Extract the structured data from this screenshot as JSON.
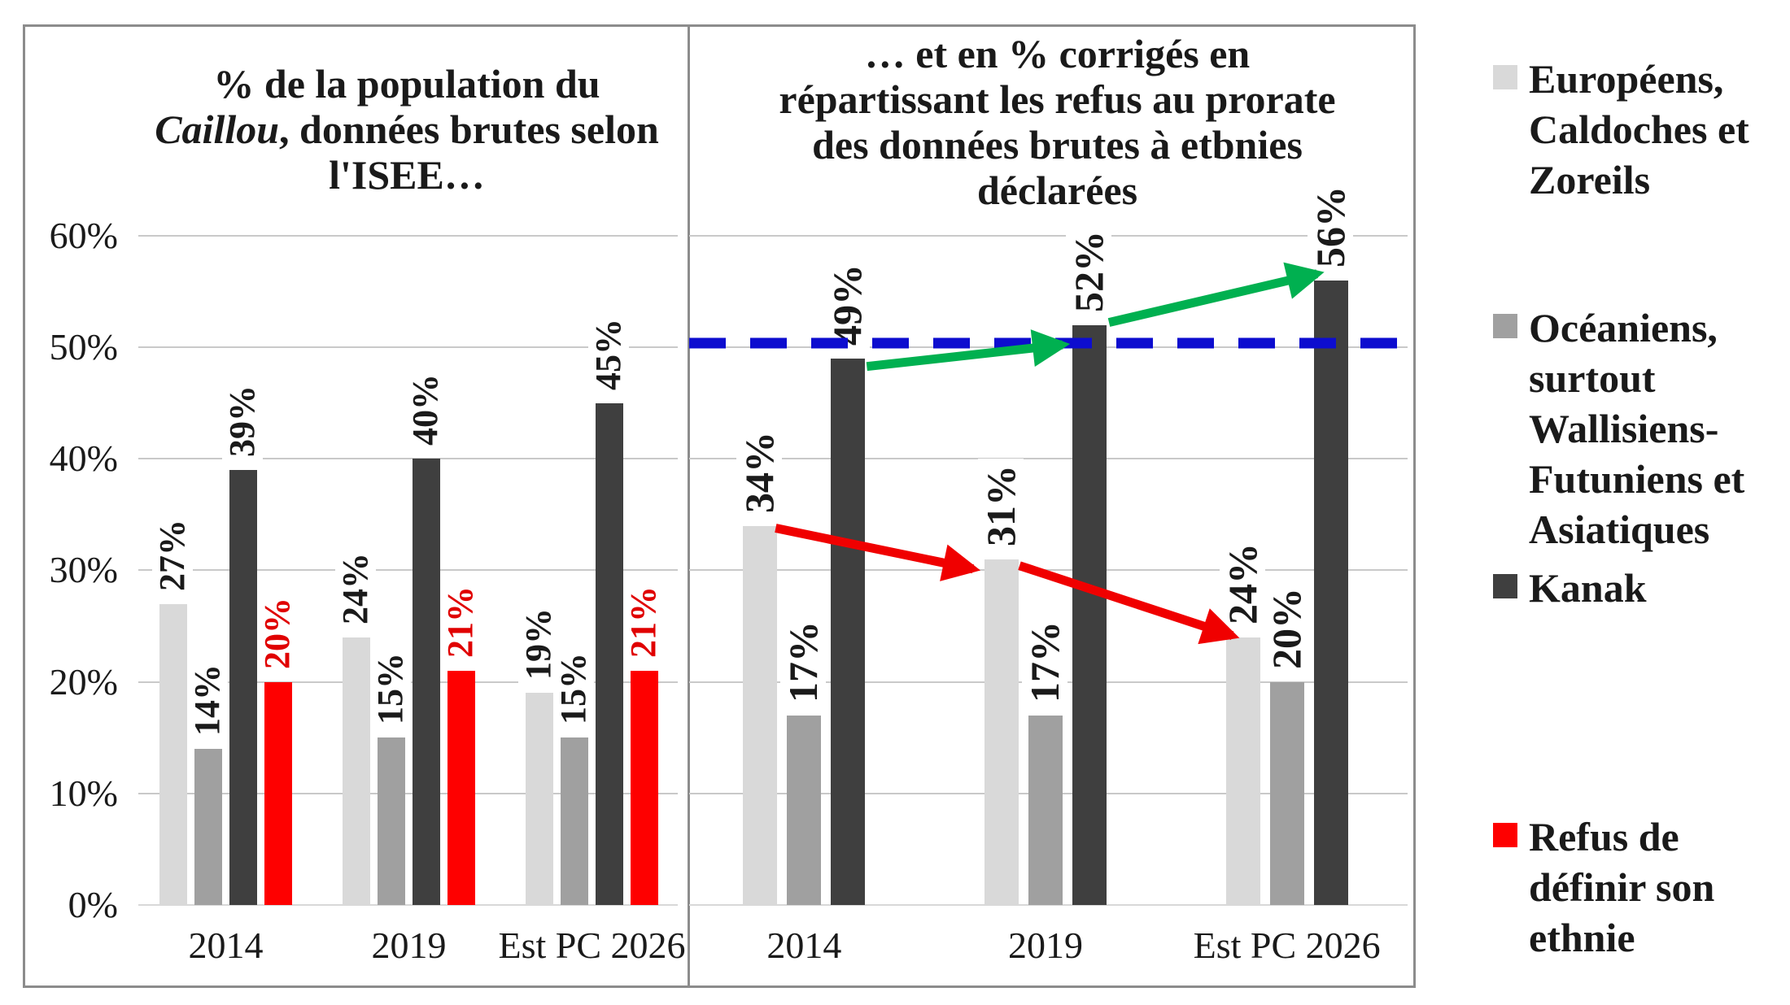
{
  "titles": {
    "left_line1": "% de la population du",
    "left_line2_italic": "Caillou",
    "left_line2_rest": ", données brutes selon",
    "left_line3": "l'ISEE…",
    "right": "… et en % corrigés en\nrépartissant les refus au prorate\ndes données brutes à etbnies\ndéclarées"
  },
  "colors": {
    "light_gray": "#d9d9d9",
    "mid_gray": "#a0a0a0",
    "dark_gray": "#3f3f3f",
    "red": "#fe0000",
    "red_label": "#e00000",
    "grid": "#c9c9c9",
    "border": "#8c8c8c",
    "ref_line_blue": "#0d0dcf",
    "trend_green": "#00b050",
    "trend_red": "#f00000"
  },
  "legend": {
    "items": [
      {
        "label": "Européens,\nCaldoches et\nZoreils",
        "color": "#d9d9d9"
      },
      {
        "label": "Océaniens,\nsurtout\nWallisiens-\nFutuniens et\nAsiatiques",
        "color": "#a0a0a0"
      },
      {
        "label": "Kanak",
        "color": "#3f3f3f"
      },
      {
        "label": "Refus de\ndéfinir son\nethnie",
        "color": "#fe0000"
      }
    ]
  },
  "chart_data": [
    {
      "panel": "left",
      "type": "bar",
      "title": "% de la population du Caillou, données brutes selon l'ISEE…",
      "categories": [
        "2014",
        "2019",
        "Est PC 2026"
      ],
      "series": [
        {
          "name": "Européens, Caldoches et Zoreils",
          "color": "#d9d9d9",
          "label_color": "#1a1a1a",
          "values": [
            27,
            24,
            19
          ]
        },
        {
          "name": "Océaniens, surtout Wallisiens-Futuniens et Asiatiques",
          "color": "#a0a0a0",
          "label_color": "#1a1a1a",
          "values": [
            14,
            15,
            15
          ]
        },
        {
          "name": "Kanak",
          "color": "#3f3f3f",
          "label_color": "#1a1a1a",
          "values": [
            39,
            40,
            45
          ]
        },
        {
          "name": "Refus de définir son ethnie",
          "color": "#fe0000",
          "label_color": "#e00000",
          "values": [
            20,
            21,
            21
          ]
        }
      ],
      "ylim": [
        0,
        60
      ],
      "yticks": [
        "0%",
        "10%",
        "20%",
        "30%",
        "40%",
        "50%",
        "60%"
      ],
      "grid": true,
      "data_labels": "rotated-90-above-bars"
    },
    {
      "panel": "right",
      "type": "bar",
      "title": "… et en % corrigés en répartissant les refus au prorate des données brutes à etbnies déclarées",
      "categories": [
        "2014",
        "2019",
        "Est PC 2026"
      ],
      "series": [
        {
          "name": "Européens, Caldoches et Zoreils",
          "color": "#d9d9d9",
          "label_color": "#1a1a1a",
          "values": [
            34,
            31,
            24
          ]
        },
        {
          "name": "Océaniens, surtout Wallisiens-Futuniens et Asiatiques",
          "color": "#a0a0a0",
          "label_color": "#1a1a1a",
          "values": [
            17,
            17,
            20
          ]
        },
        {
          "name": "Kanak",
          "color": "#3f3f3f",
          "label_color": "#1a1a1a",
          "values": [
            49,
            52,
            56
          ]
        }
      ],
      "ylim": [
        0,
        60
      ],
      "yticks": [
        "0%",
        "10%",
        "20%",
        "30%",
        "40%",
        "50%",
        "60%"
      ],
      "grid": true,
      "data_labels": "rotated-90-above-bars",
      "annotations": {
        "ref_line": {
          "value": 50,
          "style": "dashed",
          "color": "#0d0dcf"
        },
        "trend_arrows": [
          {
            "series": "Kanak",
            "direction": "up",
            "from_value": 49,
            "to_value": 56,
            "color": "#00b050"
          },
          {
            "series": "Européens, Caldoches et Zoreils",
            "direction": "down",
            "from_value": 34,
            "to_value": 24,
            "color": "#f00000"
          }
        ]
      }
    }
  ]
}
